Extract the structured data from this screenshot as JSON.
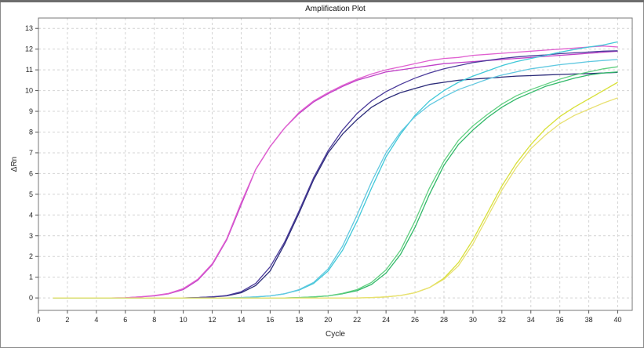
{
  "chart_data": {
    "type": "line",
    "title": "Amplification Plot",
    "xlabel": "Cycle",
    "ylabel": "ΔRn",
    "xlim": [
      0,
      41
    ],
    "ylim": [
      -0.6,
      13.5
    ],
    "xticks": [
      0,
      2,
      4,
      6,
      8,
      10,
      12,
      14,
      16,
      18,
      20,
      22,
      24,
      26,
      28,
      30,
      32,
      34,
      36,
      38,
      40
    ],
    "yticks": [
      0,
      1,
      2,
      3,
      4,
      5,
      6,
      7,
      8,
      9,
      10,
      11,
      12,
      13
    ],
    "grid": true,
    "x": [
      1,
      2,
      3,
      4,
      5,
      6,
      7,
      8,
      9,
      10,
      11,
      12,
      13,
      14,
      15,
      16,
      17,
      18,
      19,
      20,
      21,
      22,
      23,
      24,
      25,
      26,
      27,
      28,
      29,
      30,
      31,
      32,
      33,
      34,
      35,
      36,
      37,
      38,
      39,
      40
    ],
    "series": [
      {
        "color": "#c040c8",
        "values": [
          0,
          0,
          0,
          0,
          0,
          0.01,
          0.05,
          0.1,
          0.2,
          0.4,
          0.85,
          1.6,
          2.8,
          4.5,
          6.2,
          7.3,
          8.2,
          8.9,
          9.45,
          9.85,
          10.2,
          10.5,
          10.7,
          10.9,
          11.0,
          11.1,
          11.2,
          11.3,
          11.35,
          11.4,
          11.45,
          11.5,
          11.55,
          11.6,
          11.65,
          11.7,
          11.75,
          11.8,
          11.85,
          11.9
        ]
      },
      {
        "color": "#e060d0",
        "values": [
          0,
          0,
          0,
          0,
          0,
          0.01,
          0.05,
          0.12,
          0.22,
          0.45,
          0.9,
          1.65,
          2.85,
          4.6,
          6.2,
          7.3,
          8.2,
          8.95,
          9.5,
          9.9,
          10.25,
          10.55,
          10.8,
          11.0,
          11.15,
          11.3,
          11.45,
          11.55,
          11.6,
          11.7,
          11.75,
          11.8,
          11.85,
          11.9,
          11.95,
          12.0,
          12.05,
          12.1,
          12.15,
          12.1
        ]
      },
      {
        "color": "#2a2a78",
        "values": [
          0,
          0,
          0,
          0,
          0,
          0,
          0,
          0,
          0,
          0,
          0.02,
          0.05,
          0.1,
          0.25,
          0.6,
          1.3,
          2.6,
          4.1,
          5.7,
          7.0,
          7.9,
          8.6,
          9.2,
          9.6,
          9.9,
          10.1,
          10.3,
          10.4,
          10.5,
          10.55,
          10.6,
          10.65,
          10.7,
          10.72,
          10.75,
          10.78,
          10.8,
          10.82,
          10.85,
          10.88
        ]
      },
      {
        "color": "#4a3a9a",
        "values": [
          0,
          0,
          0,
          0,
          0,
          0,
          0,
          0,
          0,
          0,
          0.02,
          0.05,
          0.12,
          0.3,
          0.7,
          1.5,
          2.7,
          4.2,
          5.8,
          7.1,
          8.1,
          8.9,
          9.5,
          9.95,
          10.3,
          10.6,
          10.85,
          11.05,
          11.2,
          11.35,
          11.45,
          11.55,
          11.62,
          11.68,
          11.72,
          11.78,
          11.82,
          11.86,
          11.9,
          11.92
        ]
      },
      {
        "color": "#40c8d8",
        "values": [
          0,
          0,
          0,
          0,
          0,
          0,
          0,
          0,
          0,
          0,
          0,
          0,
          0,
          0.02,
          0.05,
          0.1,
          0.2,
          0.38,
          0.7,
          1.3,
          2.3,
          3.7,
          5.3,
          6.8,
          7.9,
          8.8,
          9.5,
          10.0,
          10.4,
          10.7,
          10.95,
          11.2,
          11.4,
          11.55,
          11.7,
          11.85,
          11.98,
          12.1,
          12.2,
          12.35
        ]
      },
      {
        "color": "#60c8e0",
        "values": [
          0,
          0,
          0,
          0,
          0,
          0,
          0,
          0,
          0,
          0,
          0,
          0,
          0,
          0.02,
          0.05,
          0.1,
          0.2,
          0.4,
          0.75,
          1.4,
          2.5,
          4.0,
          5.6,
          7.0,
          8.0,
          8.75,
          9.3,
          9.7,
          10.05,
          10.3,
          10.55,
          10.75,
          10.9,
          11.05,
          11.15,
          11.25,
          11.32,
          11.4,
          11.45,
          11.5
        ]
      },
      {
        "color": "#30b868",
        "values": [
          0,
          0,
          0,
          0,
          0,
          0,
          0,
          0,
          0,
          0,
          0,
          0,
          0,
          0,
          0,
          0,
          0,
          0.02,
          0.05,
          0.1,
          0.2,
          0.35,
          0.65,
          1.2,
          2.1,
          3.4,
          5.0,
          6.4,
          7.4,
          8.1,
          8.7,
          9.2,
          9.6,
          9.9,
          10.2,
          10.4,
          10.6,
          10.75,
          10.85,
          10.9
        ]
      },
      {
        "color": "#60d080",
        "values": [
          0,
          0,
          0,
          0,
          0,
          0,
          0,
          0,
          0,
          0,
          0,
          0,
          0,
          0,
          0,
          0,
          0,
          0.02,
          0.05,
          0.1,
          0.22,
          0.4,
          0.75,
          1.35,
          2.3,
          3.7,
          5.3,
          6.6,
          7.6,
          8.3,
          8.85,
          9.35,
          9.75,
          10.05,
          10.3,
          10.55,
          10.75,
          10.9,
          11.05,
          11.15
        ]
      },
      {
        "color": "#d8e038",
        "values": [
          0,
          0,
          0,
          0,
          0,
          0,
          0,
          0,
          0,
          0,
          0,
          0,
          0,
          0,
          0,
          0,
          0,
          0,
          0,
          0,
          0,
          0,
          0.02,
          0.05,
          0.12,
          0.25,
          0.5,
          0.95,
          1.7,
          2.8,
          4.1,
          5.4,
          6.5,
          7.4,
          8.15,
          8.75,
          9.2,
          9.6,
          10.0,
          10.4
        ]
      },
      {
        "color": "#e8e070",
        "values": [
          0,
          0,
          0,
          0,
          0,
          0,
          0,
          0,
          0,
          0,
          0,
          0,
          0,
          0,
          0,
          0,
          0,
          0,
          0,
          0,
          0,
          0,
          0.02,
          0.05,
          0.12,
          0.25,
          0.5,
          0.9,
          1.55,
          2.6,
          3.9,
          5.2,
          6.3,
          7.2,
          7.85,
          8.4,
          8.8,
          9.1,
          9.4,
          9.65
        ]
      }
    ]
  }
}
